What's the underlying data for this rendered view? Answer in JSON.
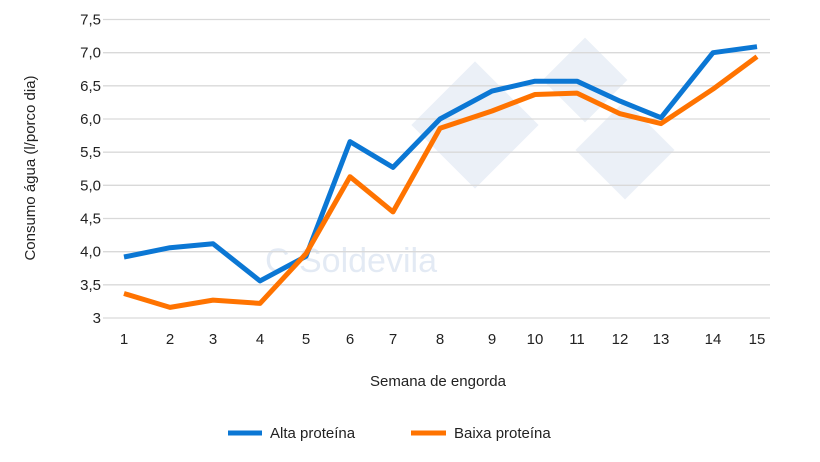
{
  "chart_data": {
    "type": "line",
    "xlabel": "Semana de engorda",
    "ylabel": "Consumo água (l/porco dia)",
    "categories": [
      "1",
      "2",
      "3",
      "4",
      "5",
      "6",
      "7",
      "8",
      "9",
      "10",
      "11",
      "12",
      "13",
      "14",
      "15"
    ],
    "y_ticks": [
      "3",
      "3,5",
      "4,0",
      "4,5",
      "5,0",
      "5,5",
      "6,0",
      "6,5",
      "7,0",
      "7,5"
    ],
    "ylim": [
      3,
      7.5
    ],
    "grid": true,
    "legend": "bottom",
    "watermark": "C Soldevila",
    "series": [
      {
        "name": "Alta proteína",
        "color": "#0b77d4",
        "values": [
          3.92,
          4.06,
          4.12,
          3.56,
          3.93,
          5.66,
          5.27,
          6.0,
          6.42,
          6.57,
          6.57,
          6.27,
          6.02,
          7.0,
          7.09
        ]
      },
      {
        "name": "Baixa proteína",
        "color": "#ff7300",
        "values": [
          3.37,
          3.16,
          3.27,
          3.22,
          3.97,
          5.13,
          4.6,
          5.86,
          6.12,
          6.37,
          6.39,
          6.08,
          5.93,
          6.45,
          6.94
        ]
      }
    ]
  }
}
